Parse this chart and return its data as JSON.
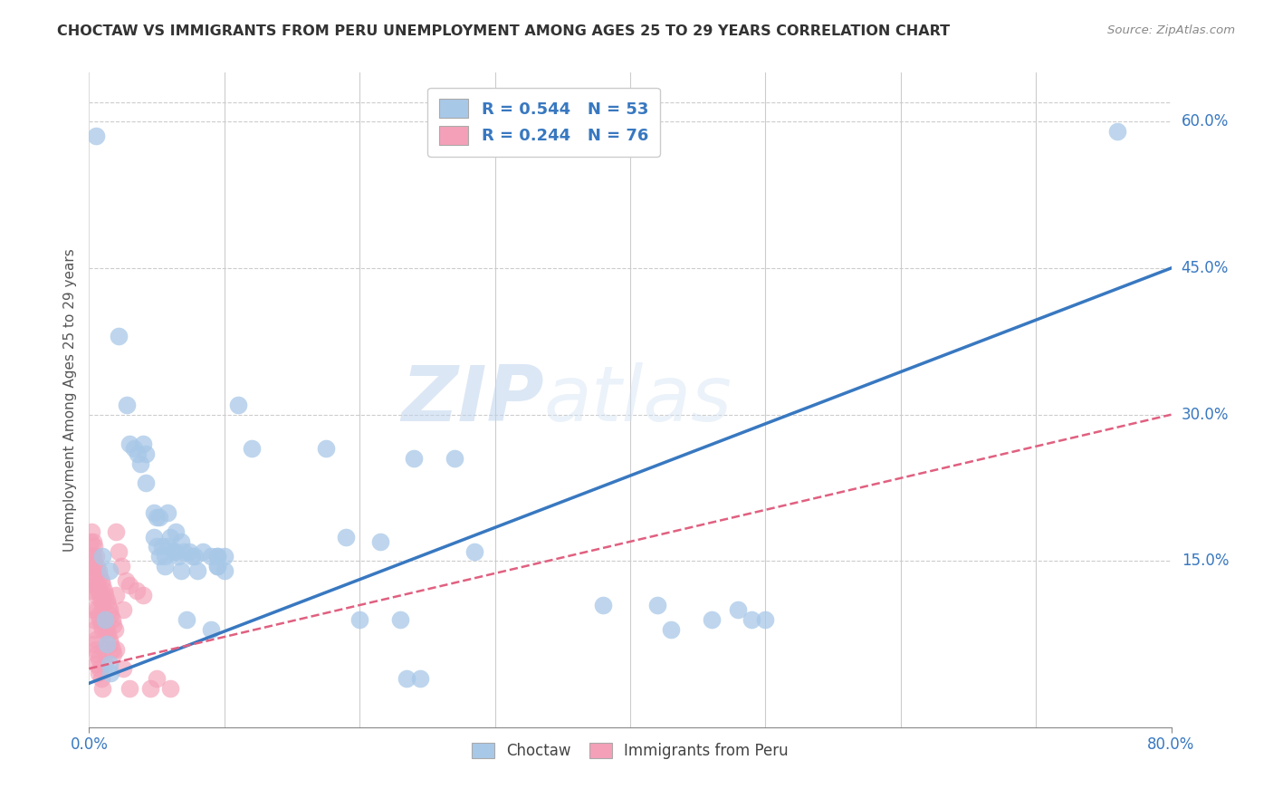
{
  "title": "CHOCTAW VS IMMIGRANTS FROM PERU UNEMPLOYMENT AMONG AGES 25 TO 29 YEARS CORRELATION CHART",
  "source": "Source: ZipAtlas.com",
  "ylabel": "Unemployment Among Ages 25 to 29 years",
  "xlim": [
    0.0,
    0.8
  ],
  "ylim": [
    -0.02,
    0.65
  ],
  "xtick_positions": [
    0.0,
    0.8
  ],
  "xtick_labels": [
    "0.0%",
    "80.0%"
  ],
  "ytick_labels_right": [
    0.15,
    0.3,
    0.45,
    0.6
  ],
  "legend_label_choctaw": "Choctaw",
  "legend_label_peru": "Immigrants from Peru",
  "choctaw_color": "#a8c8e8",
  "peru_color": "#f4a0b8",
  "choctaw_line_color": "#3878c0",
  "peru_line_color": "#e06080",
  "watermark_zip": "ZIP",
  "watermark_atlas": "atlas",
  "choctaw_scatter": [
    [
      0.005,
      0.585
    ],
    [
      0.022,
      0.38
    ],
    [
      0.028,
      0.31
    ],
    [
      0.03,
      0.27
    ],
    [
      0.033,
      0.265
    ],
    [
      0.036,
      0.26
    ],
    [
      0.04,
      0.27
    ],
    [
      0.038,
      0.25
    ],
    [
      0.042,
      0.23
    ],
    [
      0.042,
      0.26
    ],
    [
      0.048,
      0.2
    ],
    [
      0.05,
      0.195
    ],
    [
      0.048,
      0.175
    ],
    [
      0.05,
      0.165
    ],
    [
      0.052,
      0.155
    ],
    [
      0.052,
      0.195
    ],
    [
      0.054,
      0.165
    ],
    [
      0.056,
      0.155
    ],
    [
      0.056,
      0.145
    ],
    [
      0.058,
      0.2
    ],
    [
      0.06,
      0.175
    ],
    [
      0.058,
      0.165
    ],
    [
      0.062,
      0.16
    ],
    [
      0.064,
      0.18
    ],
    [
      0.064,
      0.16
    ],
    [
      0.066,
      0.155
    ],
    [
      0.068,
      0.17
    ],
    [
      0.07,
      0.16
    ],
    [
      0.068,
      0.14
    ],
    [
      0.072,
      0.09
    ],
    [
      0.074,
      0.16
    ],
    [
      0.076,
      0.155
    ],
    [
      0.078,
      0.155
    ],
    [
      0.08,
      0.14
    ],
    [
      0.084,
      0.16
    ],
    [
      0.09,
      0.155
    ],
    [
      0.09,
      0.08
    ],
    [
      0.095,
      0.155
    ],
    [
      0.095,
      0.145
    ],
    [
      0.095,
      0.155
    ],
    [
      0.095,
      0.145
    ],
    [
      0.1,
      0.155
    ],
    [
      0.1,
      0.14
    ],
    [
      0.01,
      0.155
    ],
    [
      0.015,
      0.14
    ],
    [
      0.012,
      0.09
    ],
    [
      0.013,
      0.065
    ],
    [
      0.015,
      0.045
    ],
    [
      0.016,
      0.035
    ],
    [
      0.11,
      0.31
    ],
    [
      0.12,
      0.265
    ],
    [
      0.175,
      0.265
    ],
    [
      0.19,
      0.175
    ],
    [
      0.2,
      0.09
    ],
    [
      0.215,
      0.17
    ],
    [
      0.24,
      0.255
    ],
    [
      0.245,
      0.03
    ],
    [
      0.27,
      0.255
    ],
    [
      0.285,
      0.16
    ],
    [
      0.23,
      0.09
    ],
    [
      0.235,
      0.03
    ],
    [
      0.38,
      0.105
    ],
    [
      0.42,
      0.105
    ],
    [
      0.43,
      0.08
    ],
    [
      0.46,
      0.09
    ],
    [
      0.48,
      0.1
    ],
    [
      0.49,
      0.09
    ],
    [
      0.5,
      0.09
    ],
    [
      0.76,
      0.59
    ]
  ],
  "peru_scatter": [
    [
      0.001,
      0.17
    ],
    [
      0.001,
      0.155
    ],
    [
      0.001,
      0.145
    ],
    [
      0.002,
      0.18
    ],
    [
      0.002,
      0.155
    ],
    [
      0.002,
      0.14
    ],
    [
      0.002,
      0.12
    ],
    [
      0.003,
      0.17
    ],
    [
      0.003,
      0.155
    ],
    [
      0.003,
      0.13
    ],
    [
      0.003,
      0.1
    ],
    [
      0.003,
      0.09
    ],
    [
      0.004,
      0.165
    ],
    [
      0.004,
      0.145
    ],
    [
      0.004,
      0.125
    ],
    [
      0.004,
      0.08
    ],
    [
      0.004,
      0.065
    ],
    [
      0.005,
      0.155
    ],
    [
      0.005,
      0.135
    ],
    [
      0.005,
      0.115
    ],
    [
      0.005,
      0.07
    ],
    [
      0.005,
      0.06
    ],
    [
      0.005,
      0.045
    ],
    [
      0.006,
      0.145
    ],
    [
      0.006,
      0.125
    ],
    [
      0.006,
      0.1
    ],
    [
      0.006,
      0.055
    ],
    [
      0.007,
      0.14
    ],
    [
      0.007,
      0.12
    ],
    [
      0.007,
      0.095
    ],
    [
      0.007,
      0.05
    ],
    [
      0.007,
      0.035
    ],
    [
      0.008,
      0.135
    ],
    [
      0.008,
      0.115
    ],
    [
      0.008,
      0.09
    ],
    [
      0.008,
      0.04
    ],
    [
      0.009,
      0.13
    ],
    [
      0.009,
      0.11
    ],
    [
      0.009,
      0.085
    ],
    [
      0.009,
      0.03
    ],
    [
      0.01,
      0.125
    ],
    [
      0.01,
      0.105
    ],
    [
      0.01,
      0.08
    ],
    [
      0.01,
      0.02
    ],
    [
      0.011,
      0.12
    ],
    [
      0.011,
      0.09
    ],
    [
      0.011,
      0.06
    ],
    [
      0.012,
      0.115
    ],
    [
      0.012,
      0.085
    ],
    [
      0.012,
      0.045
    ],
    [
      0.013,
      0.11
    ],
    [
      0.013,
      0.08
    ],
    [
      0.014,
      0.105
    ],
    [
      0.014,
      0.075
    ],
    [
      0.015,
      0.1
    ],
    [
      0.015,
      0.07
    ],
    [
      0.016,
      0.095
    ],
    [
      0.016,
      0.065
    ],
    [
      0.017,
      0.09
    ],
    [
      0.017,
      0.06
    ],
    [
      0.018,
      0.085
    ],
    [
      0.018,
      0.055
    ],
    [
      0.019,
      0.08
    ],
    [
      0.02,
      0.18
    ],
    [
      0.02,
      0.115
    ],
    [
      0.02,
      0.06
    ],
    [
      0.022,
      0.16
    ],
    [
      0.024,
      0.145
    ],
    [
      0.025,
      0.1
    ],
    [
      0.025,
      0.04
    ],
    [
      0.027,
      0.13
    ],
    [
      0.03,
      0.125
    ],
    [
      0.03,
      0.02
    ],
    [
      0.035,
      0.12
    ],
    [
      0.04,
      0.115
    ],
    [
      0.045,
      0.02
    ],
    [
      0.05,
      0.03
    ],
    [
      0.06,
      0.02
    ]
  ],
  "choctaw_line": {
    "x0": 0.0,
    "y0": 0.025,
    "x1": 0.8,
    "y1": 0.45
  },
  "peru_line": {
    "x0": 0.0,
    "y0": 0.04,
    "x1": 0.8,
    "y1": 0.3
  }
}
